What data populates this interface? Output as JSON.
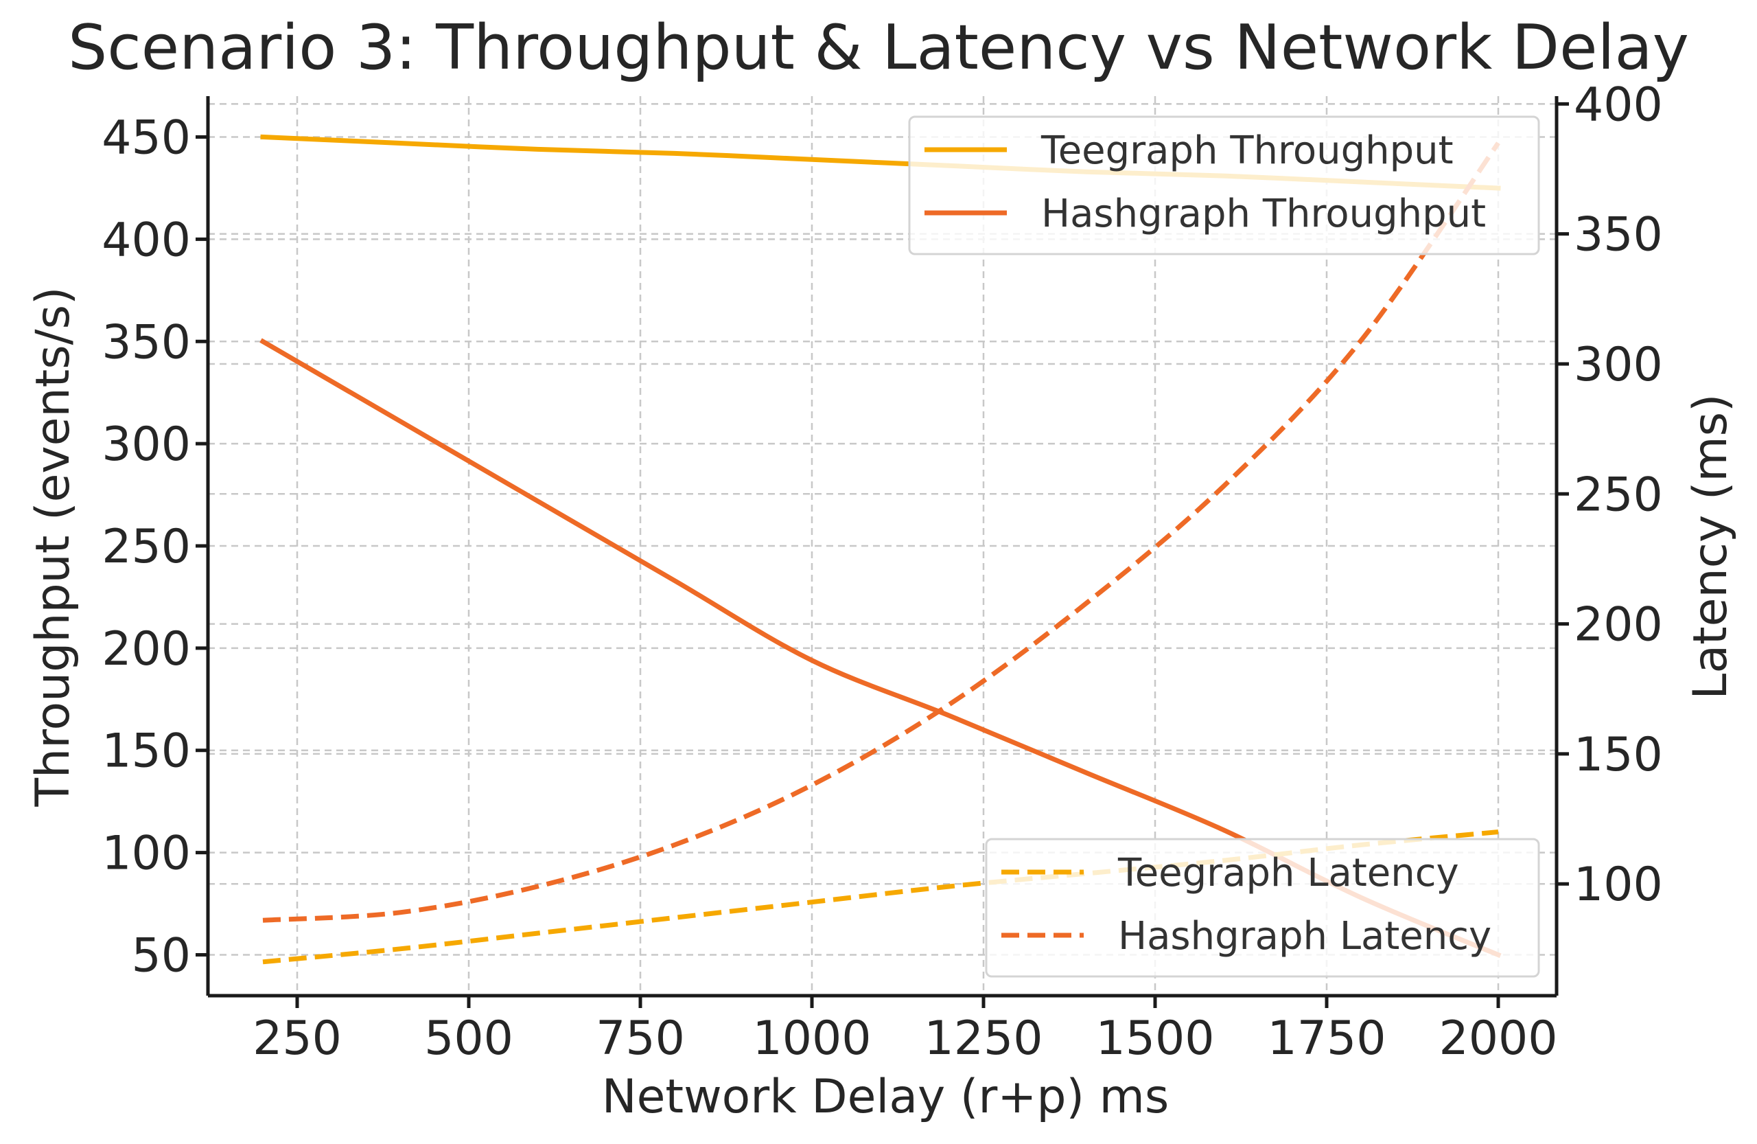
{
  "chart_data": {
    "type": "line",
    "title": "Scenario 3: Throughput & Latency vs Network Delay",
    "xlabel": "Network Delay (r+p) ms",
    "ylabel_left": "Throughput (events/s)",
    "ylabel_right": "Latency (ms)",
    "x": [
      200,
      400,
      600,
      800,
      1000,
      1200,
      1400,
      1600,
      1800,
      2000
    ],
    "xlim": [
      120,
      2085
    ],
    "xticks": [
      "250",
      "500",
      "750",
      "1000",
      "1250",
      "1500",
      "1750",
      "2000"
    ],
    "y_left_lim": [
      30,
      470
    ],
    "y_left_ticks": [
      "50",
      "100",
      "150",
      "200",
      "250",
      "300",
      "350",
      "400",
      "450"
    ],
    "y_right_lim": [
      57,
      403
    ],
    "y_right_ticks": [
      "100",
      "150",
      "200",
      "250",
      "300",
      "350",
      "400"
    ],
    "grid": true,
    "series": [
      {
        "name": "Teegraph Throughput",
        "axis": "left",
        "style": "solid",
        "color": "#F6A800",
        "values": [
          450,
          447,
          444,
          442,
          439,
          436,
          433,
          431,
          428,
          425
        ]
      },
      {
        "name": "Hashgraph Throughput",
        "axis": "left",
        "style": "solid",
        "color": "#EE6A26",
        "values": [
          350,
          311,
          272,
          233,
          194,
          167,
          139,
          111,
          78,
          50
        ]
      },
      {
        "name": "Teegraph Latency",
        "axis": "right",
        "style": "dashed",
        "color": "#F6A800",
        "values": [
          70,
          75,
          81,
          87,
          93,
          99,
          104,
          109,
          115,
          120
        ]
      },
      {
        "name": "Hashgraph Latency",
        "axis": "right",
        "style": "dashed",
        "color": "#EE6A26",
        "values": [
          86,
          89,
          99,
          115,
          138,
          169,
          208,
          253,
          309,
          385
        ]
      }
    ],
    "legends": [
      {
        "placement": "top-right",
        "entries": [
          "Teegraph Throughput",
          "Hashgraph Throughput"
        ]
      },
      {
        "placement": "lower-right",
        "entries": [
          "Teegraph Latency",
          "Hashgraph Latency"
        ]
      }
    ]
  }
}
